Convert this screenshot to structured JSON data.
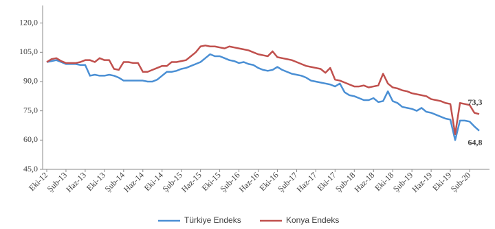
{
  "chart_data": {
    "type": "line",
    "categories": [
      "Eki-12",
      null,
      null,
      null,
      "Şub-13",
      null,
      null,
      null,
      "Haz-13",
      null,
      null,
      null,
      "Eki-13",
      null,
      null,
      null,
      "Şub-14",
      null,
      null,
      null,
      "Haz-14",
      null,
      null,
      null,
      "Eki-14",
      null,
      null,
      null,
      "Şub-15",
      null,
      null,
      null,
      "Haz-15",
      null,
      null,
      null,
      "Eki-15",
      null,
      null,
      null,
      "Şub-16",
      null,
      null,
      null,
      "Haz-16",
      null,
      null,
      null,
      "Eki-16",
      null,
      null,
      null,
      "Şub-17",
      null,
      null,
      null,
      "Haz-17",
      null,
      null,
      null,
      "Eki-17",
      null,
      null,
      null,
      "Şub-18",
      null,
      null,
      null,
      "Haz-18",
      null,
      null,
      null,
      "Eki-18",
      null,
      null,
      null,
      "Şub-19",
      null,
      null,
      null,
      "Haz-19",
      null,
      null,
      null,
      "Eki-19",
      null,
      null,
      null,
      "Şub-20",
      null,
      null
    ],
    "series": [
      {
        "name": "Türkiye Endeks",
        "color": "#4a8fd4",
        "values": [
          100,
          100.5,
          101,
          100,
          99,
          99,
          99,
          98.5,
          98.5,
          93,
          93.5,
          93,
          93,
          93.5,
          93,
          92,
          90.5,
          90.5,
          90.5,
          90.5,
          90.5,
          90,
          90,
          91,
          93,
          95,
          95,
          95.5,
          96.5,
          97,
          98,
          99,
          100,
          102,
          104,
          103,
          103,
          102,
          101,
          100.5,
          99.5,
          100,
          99,
          98.5,
          97,
          96,
          95.5,
          96,
          97.5,
          96,
          95,
          94,
          93.5,
          93,
          92,
          90.5,
          90,
          89.5,
          89,
          88.5,
          87.5,
          89,
          84.5,
          83,
          82.5,
          81.5,
          80.5,
          80.5,
          81.5,
          79.5,
          80,
          85,
          80,
          79,
          77,
          76.5,
          76,
          75,
          76.5,
          74.5,
          74,
          73,
          72,
          71,
          70.5,
          60,
          70,
          70,
          69.5,
          67,
          64.8
        ],
        "value_labels": {
          "90": "64,8"
        }
      },
      {
        "name": "Konya Endeks",
        "color": "#c0504d",
        "values": [
          100,
          101.5,
          102,
          100.5,
          99.5,
          99.5,
          99.5,
          100,
          101,
          101,
          100,
          102,
          101,
          101,
          96.5,
          96,
          100,
          100,
          99.5,
          99.5,
          95,
          95,
          96,
          97,
          98,
          98,
          100,
          100,
          100.5,
          101,
          103,
          105,
          108,
          108.5,
          108,
          108,
          107.5,
          107,
          108,
          107.5,
          107,
          106.5,
          106,
          105,
          104,
          103.5,
          103,
          105.5,
          102.5,
          102,
          101.5,
          101,
          100,
          99,
          98,
          97.5,
          97,
          96.5,
          94.5,
          97,
          91,
          90.5,
          89.5,
          88.5,
          87.5,
          87.5,
          88,
          87,
          87.5,
          88,
          94,
          89,
          87,
          86.5,
          85.5,
          85,
          84,
          83.5,
          83,
          82.5,
          81,
          80.5,
          80,
          79,
          78.5,
          63,
          79,
          78.5,
          78,
          74,
          73.3
        ],
        "value_labels": {
          "90": "73,3"
        }
      }
    ],
    "ylim": [
      45,
      129
    ],
    "yticks": [
      {
        "value": 45,
        "label": "45,0"
      },
      {
        "value": 60,
        "label": "60,0"
      },
      {
        "value": 75,
        "label": "75,0"
      },
      {
        "value": 90,
        "label": "90,0"
      },
      {
        "value": 105,
        "label": "105,0"
      },
      {
        "value": 120,
        "label": "120,0"
      }
    ],
    "grid": false,
    "legend": "bottom"
  }
}
